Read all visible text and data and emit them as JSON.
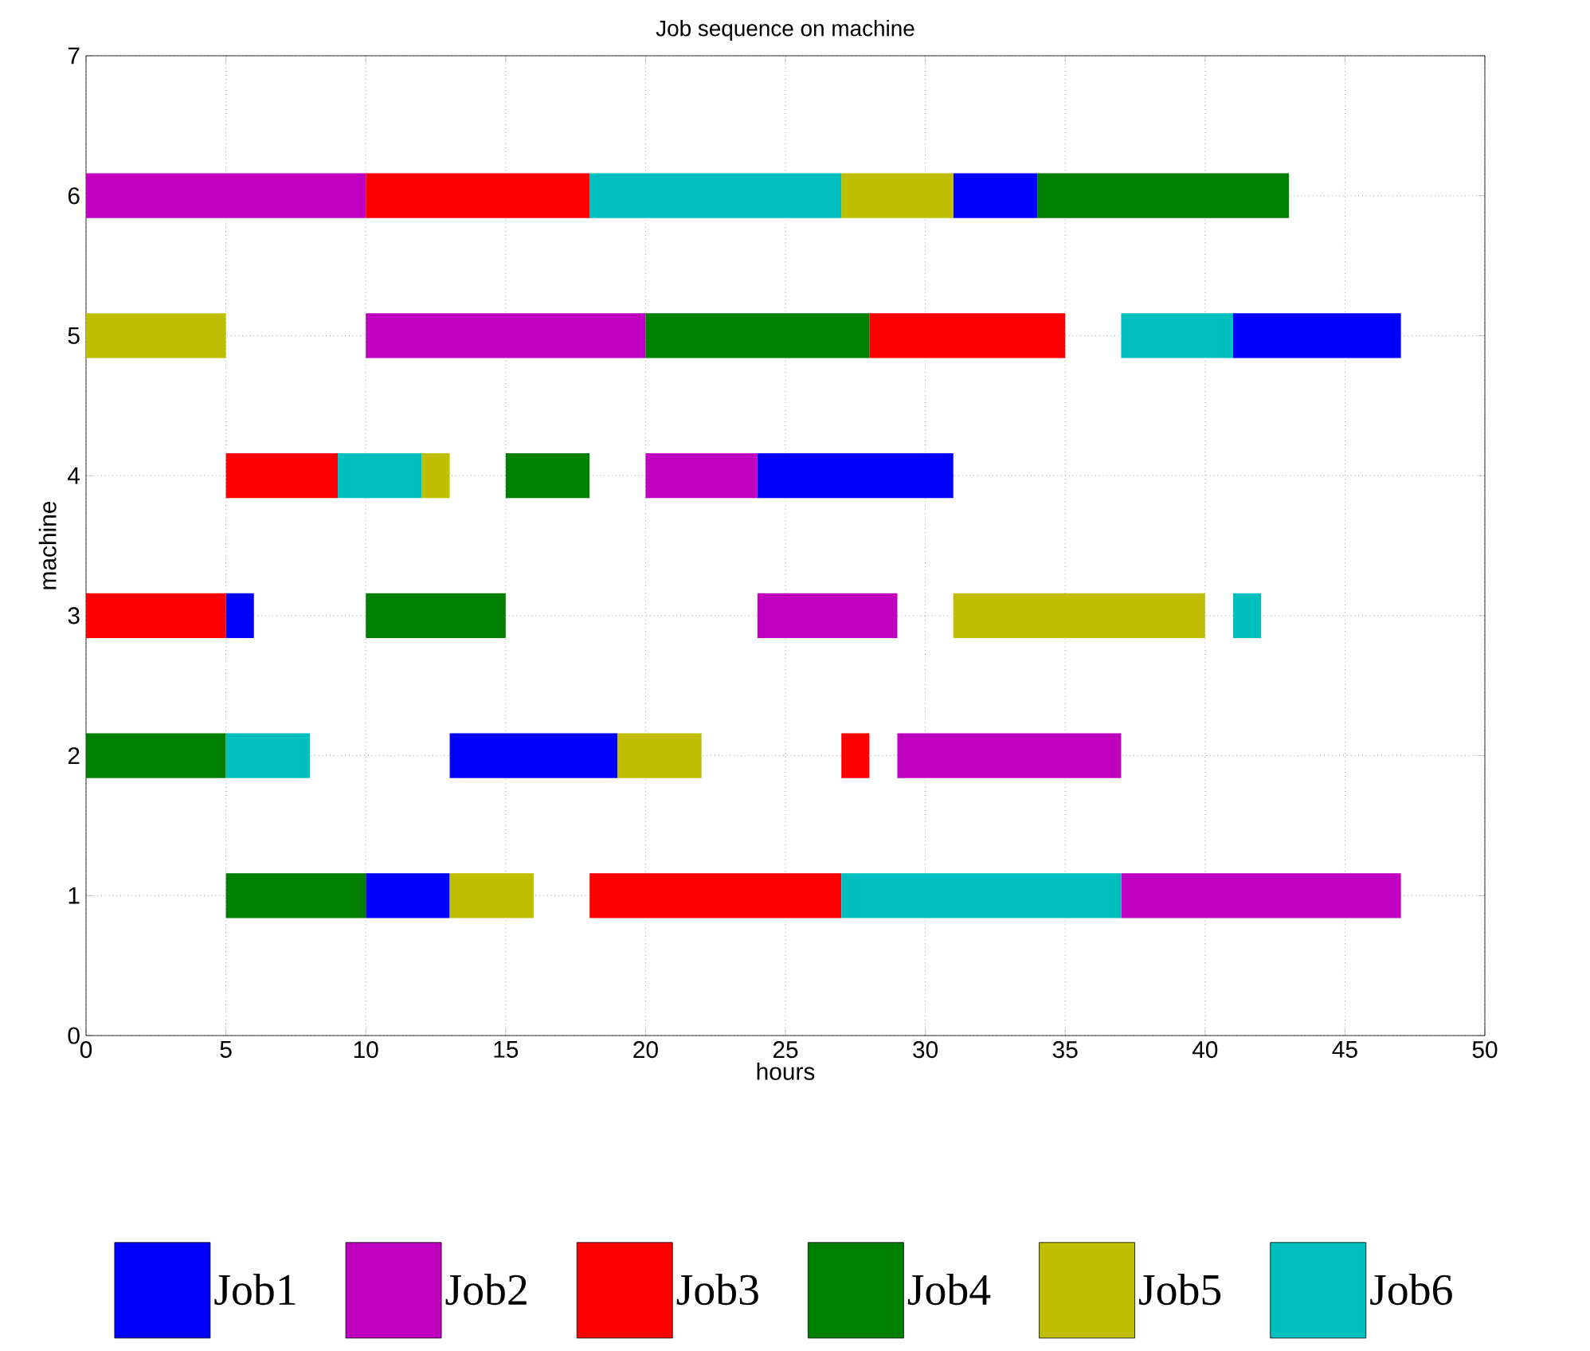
{
  "chart_data": {
    "type": "bar",
    "orientation": "horizontal",
    "title": "Job sequence on machine",
    "xlabel": "hours",
    "ylabel": "machine",
    "categories": [
      "7",
      "6",
      "5",
      "4",
      "3",
      "2",
      "1",
      "0"
    ],
    "series": [
      {
        "name": "Job1",
        "color": "#0000ff",
        "base": [
          null,
          31,
          41,
          24,
          5,
          13,
          10,
          null
        ],
        "values": [
          null,
          3,
          6,
          7,
          1,
          6,
          3,
          null
        ]
      },
      {
        "name": "Job2",
        "color": "#bf00bf",
        "base": [
          null,
          0,
          10,
          20,
          24,
          29,
          37,
          null
        ],
        "values": [
          null,
          10,
          10,
          4,
          5,
          8,
          10,
          null
        ]
      },
      {
        "name": "Job3",
        "color": "#ff0000",
        "base": [
          null,
          10,
          28,
          5,
          0,
          27,
          18,
          null
        ],
        "values": [
          null,
          8,
          7,
          4,
          5,
          1,
          9,
          null
        ]
      },
      {
        "name": "Job4",
        "color": "#008000",
        "base": [
          null,
          34,
          20,
          15,
          10,
          0,
          5,
          null
        ],
        "values": [
          null,
          9,
          8,
          3,
          5,
          5,
          5,
          null
        ]
      },
      {
        "name": "Job5",
        "color": "#bfbf00",
        "base": [
          null,
          27,
          0,
          12,
          31,
          19,
          13,
          null
        ],
        "values": [
          null,
          4,
          5,
          1,
          9,
          3,
          3,
          null
        ]
      },
      {
        "name": "Job6",
        "color": "#00bfbf",
        "base": [
          null,
          18,
          37,
          9,
          41,
          5,
          27,
          null
        ],
        "values": [
          null,
          9,
          4,
          3,
          1,
          3,
          10,
          null
        ]
      }
    ],
    "xlim": [
      0,
      50
    ],
    "xticks": [
      0,
      5,
      10,
      15,
      20,
      25,
      30,
      35,
      40,
      45,
      50
    ],
    "grid": true,
    "legend": "bottom"
  }
}
